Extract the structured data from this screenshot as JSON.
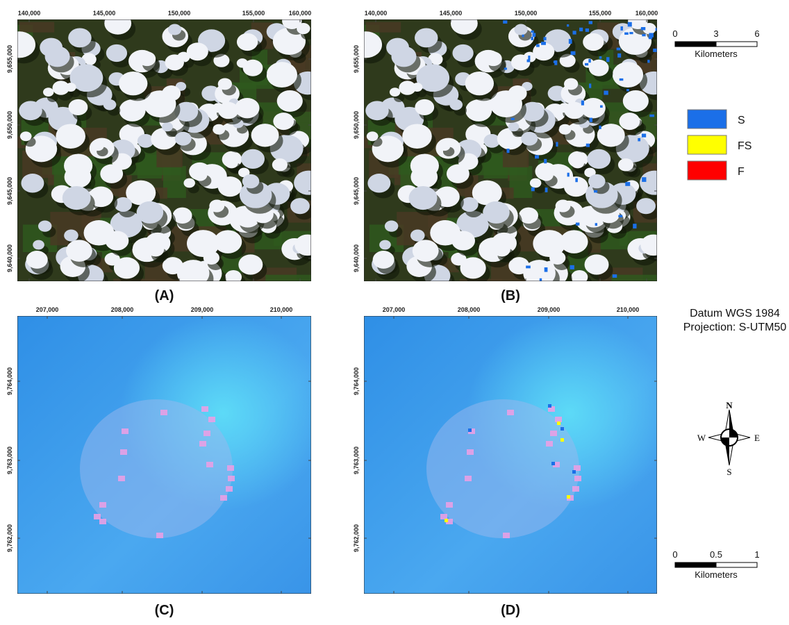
{
  "panels": [
    {
      "label": "(A)",
      "x_ticks": [
        "140,000",
        "145,000",
        "150,000",
        "155,000",
        "160,000"
      ],
      "y_ticks": [
        "9,655,000",
        "9,650,000",
        "9,645,000",
        "9,640,000"
      ]
    },
    {
      "label": "(B)",
      "x_ticks": [
        "140,000",
        "145,000",
        "150,000",
        "155,000",
        "160,000"
      ],
      "y_ticks": [
        "9,655,000",
        "9,650,000",
        "9,645,000",
        "9,640,000"
      ]
    },
    {
      "label": "(C)",
      "x_ticks": [
        "207,000",
        "208,000",
        "209,000",
        "210,000"
      ],
      "y_ticks": [
        "9,764,000",
        "9,763,000",
        "9,762,000"
      ]
    },
    {
      "label": "(D)",
      "x_ticks": [
        "207,000",
        "208,000",
        "209,000",
        "210,000"
      ],
      "y_ticks": [
        "9,764,000",
        "9,763,000",
        "9,762,000"
      ]
    }
  ],
  "legend": {
    "items": [
      {
        "label": "S",
        "color": "#1b6fe8"
      },
      {
        "label": "FS",
        "color": "#ffff00"
      },
      {
        "label": "F",
        "color": "#ff0000"
      }
    ]
  },
  "scale_bars": [
    {
      "ticks": [
        "0",
        "3",
        "6"
      ],
      "unit": "Kilometers"
    },
    {
      "ticks": [
        "0",
        "0.5",
        "1"
      ],
      "unit": "Kilometers"
    }
  ],
  "datum": [
    "Datum WGS 1984",
    "Projection: S-UTM50"
  ],
  "compass": {
    "n": "N",
    "s": "S",
    "e": "E",
    "w": "W"
  }
}
